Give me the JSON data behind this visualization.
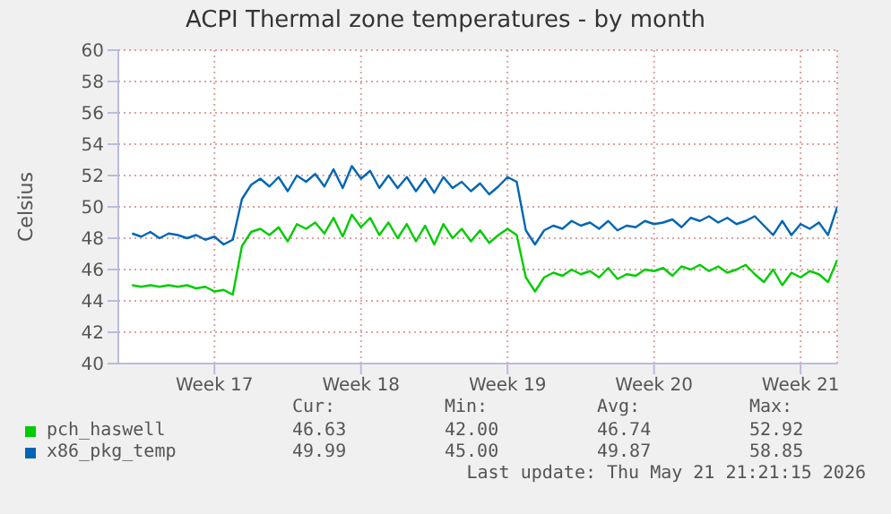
{
  "chart_data": {
    "type": "line",
    "title": "ACPI Thermal zone temperatures - by month",
    "ylabel": "Celsius",
    "categories": [
      null,
      null,
      null,
      null,
      null,
      null,
      null,
      null,
      null,
      "Week 17",
      null,
      null,
      null,
      null,
      null,
      null,
      null,
      null,
      null,
      null,
      null,
      null,
      null,
      null,
      null,
      "Week 18",
      null,
      null,
      null,
      null,
      null,
      null,
      null,
      null,
      null,
      null,
      null,
      null,
      null,
      null,
      null,
      "Week 19",
      null,
      null,
      null,
      null,
      null,
      null,
      null,
      null,
      null,
      null,
      null,
      null,
      null,
      null,
      null,
      "Week 20",
      null,
      null,
      null,
      null,
      null,
      null,
      null,
      null,
      null,
      null,
      null,
      null,
      null,
      null,
      null,
      "Week 21",
      null,
      null,
      null,
      null
    ],
    "ylim": [
      40,
      60
    ],
    "yticks": [
      40,
      42,
      44,
      46,
      48,
      50,
      52,
      54,
      56,
      58,
      60
    ],
    "grid": true,
    "legend": "bottom",
    "marker": "none",
    "line_style": "solid",
    "series": [
      {
        "name": "pch_haswell",
        "color": "#00cc00",
        "values": [
          45.0,
          44.9,
          45.0,
          44.9,
          45.0,
          44.9,
          45.0,
          44.8,
          44.9,
          44.6,
          44.7,
          44.4,
          47.5,
          48.4,
          48.6,
          48.2,
          48.7,
          47.8,
          48.9,
          48.6,
          49.0,
          48.3,
          49.3,
          48.1,
          49.5,
          48.7,
          49.3,
          48.2,
          49.0,
          48.0,
          48.9,
          47.8,
          48.8,
          47.6,
          48.9,
          48.0,
          48.6,
          47.8,
          48.5,
          47.7,
          48.2,
          48.6,
          48.2,
          45.5,
          44.6,
          45.5,
          45.8,
          45.6,
          46.0,
          45.7,
          45.9,
          45.5,
          46.1,
          45.4,
          45.7,
          45.6,
          46.0,
          45.9,
          46.1,
          45.6,
          46.2,
          46.0,
          46.3,
          45.9,
          46.2,
          45.8,
          46.0,
          46.3,
          45.7,
          45.2,
          46.0,
          45.0,
          45.8,
          45.5,
          45.9,
          45.7,
          45.2,
          46.6
        ]
      },
      {
        "name": "x86_pkg_temp",
        "color": "#0066b3",
        "values": [
          48.3,
          48.1,
          48.4,
          48.0,
          48.3,
          48.2,
          48.0,
          48.2,
          47.9,
          48.1,
          47.6,
          47.9,
          50.5,
          51.4,
          51.8,
          51.3,
          51.9,
          51.0,
          52.0,
          51.6,
          52.1,
          51.3,
          52.4,
          51.2,
          52.6,
          51.8,
          52.3,
          51.2,
          52.0,
          51.2,
          51.9,
          51.0,
          51.8,
          50.9,
          51.9,
          51.2,
          51.6,
          51.0,
          51.5,
          50.8,
          51.3,
          51.9,
          51.6,
          48.5,
          47.6,
          48.5,
          48.8,
          48.6,
          49.1,
          48.8,
          49.0,
          48.6,
          49.1,
          48.5,
          48.8,
          48.7,
          49.1,
          48.9,
          49.0,
          49.2,
          48.7,
          49.3,
          49.1,
          49.4,
          49.0,
          49.3,
          48.9,
          49.1,
          49.4,
          48.8,
          48.2,
          49.1,
          48.2,
          48.9,
          48.6,
          49.0,
          48.2,
          50.0
        ]
      }
    ],
    "annotations": [
      "Cur:",
      "Min:",
      "Avg:",
      "Max:",
      "46.63",
      "42.00",
      "46.74",
      "52.92",
      "49.99",
      "45.00",
      "49.87",
      "58.85",
      "Last update: Thu May 21 21:21:15 2026"
    ]
  }
}
